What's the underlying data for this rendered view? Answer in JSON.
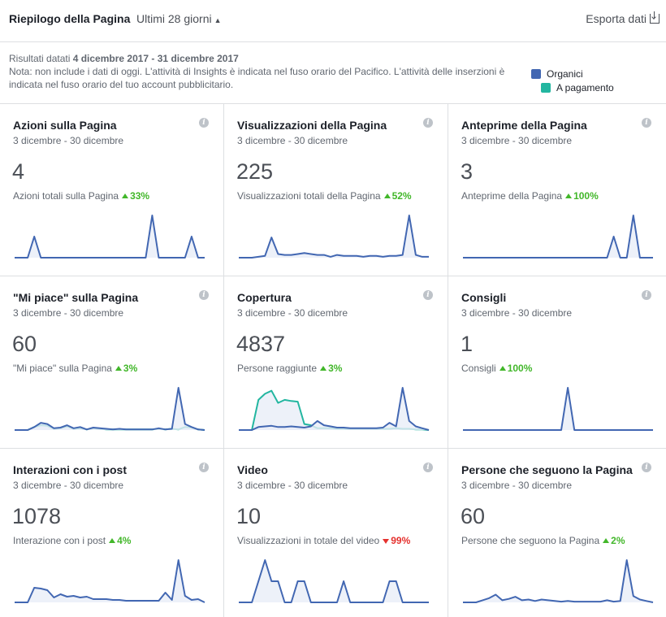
{
  "header": {
    "title": "Riepilogo della Pagina",
    "period": "Ultimi 28 giorni",
    "export_label": "Esporta dati"
  },
  "notes": {
    "prefix": "Risultati datati ",
    "range": "4 dicembre 2017 - 31 dicembre 2017",
    "note": "Nota: non include i dati di oggi. L'attività di Insights è indicata nel fuso orario del Pacifico. L'attività delle inserzioni è indicata nel fuso orario del tuo account pubblicitario."
  },
  "legend": [
    {
      "label": "Organici",
      "color": "#4267b2"
    },
    {
      "label": "A pagamento",
      "color": "#23b6a0"
    }
  ],
  "colors": {
    "organic": "#4267b2",
    "paid": "#23b6a0",
    "fill": "#e9eef7",
    "up": "#42b72a",
    "down": "#e5312e"
  },
  "cards": [
    {
      "title": "Azioni sulla Pagina",
      "subtitle": "3 dicembre - 30 dicembre",
      "value": "4",
      "caption": "Azioni totali sulla Pagina",
      "delta": "33%",
      "direction": "up",
      "organic": [
        0,
        0,
        0,
        2,
        0,
        0,
        0,
        0,
        0,
        0,
        0,
        0,
        0,
        0,
        0,
        0,
        0,
        0,
        0,
        0,
        0,
        4,
        0,
        0,
        0,
        0,
        0,
        2,
        0,
        0
      ],
      "paid": null
    },
    {
      "title": "Visualizzazioni della Pagina",
      "subtitle": "3 dicembre - 30 dicembre",
      "value": "225",
      "caption": "Visualizzazioni totali della Pagina",
      "delta": "52%",
      "direction": "up",
      "organic": [
        0,
        0,
        0,
        0.1,
        0.2,
        2.2,
        0.4,
        0.3,
        0.3,
        0.4,
        0.5,
        0.4,
        0.3,
        0.3,
        0.1,
        0.3,
        0.2,
        0.2,
        0.2,
        0.1,
        0.2,
        0.2,
        0.1,
        0.2,
        0.2,
        0.3,
        4.6,
        0.3,
        0.1,
        0.1
      ],
      "paid": null
    },
    {
      "title": "Anteprime della Pagina",
      "subtitle": "3 dicembre - 30 dicembre",
      "value": "3",
      "caption": "Anteprime della Pagina",
      "delta": "100%",
      "direction": "up",
      "organic": [
        0,
        0,
        0,
        0,
        0,
        0,
        0,
        0,
        0,
        0,
        0,
        0,
        0,
        0,
        0,
        0,
        0,
        0,
        0,
        0,
        0,
        0,
        0,
        1,
        0,
        0,
        2,
        0,
        0,
        0
      ],
      "paid": null
    },
    {
      "title": "\"Mi piace\" sulla Pagina",
      "subtitle": "3 dicembre - 30 dicembre",
      "value": "60",
      "caption": "\"Mi piace\" sulla Pagina",
      "delta": "3%",
      "direction": "up",
      "organic": [
        0,
        0,
        0,
        0.5,
        1.2,
        1.0,
        0.3,
        0.4,
        0.8,
        0.3,
        0.5,
        0.1,
        0.4,
        0.3,
        0.2,
        0.1,
        0.2,
        0.1,
        0.1,
        0.1,
        0.1,
        0.1,
        0.3,
        0.1,
        0.2,
        7.0,
        1.0,
        0.5,
        0.1,
        0
      ],
      "paid": [
        0,
        0,
        0,
        0.5,
        0.8,
        0.7,
        0.2,
        0.3,
        0.6,
        0.2,
        0.3,
        0.1,
        0.3,
        0.2,
        0.1,
        0.1,
        0.1,
        0.1,
        0.1,
        0.1,
        0.1,
        0.1,
        0.2,
        0.1,
        0.2,
        0.1,
        0.5,
        0.4,
        0.1,
        0
      ]
    },
    {
      "title": "Copertura",
      "subtitle": "3 dicembre - 30 dicembre",
      "value": "4837",
      "caption": "Persone raggiunte",
      "delta": "3%",
      "direction": "up",
      "organic": [
        0,
        0,
        0,
        50,
        60,
        70,
        50,
        50,
        60,
        50,
        40,
        60,
        150,
        80,
        60,
        40,
        40,
        30,
        30,
        30,
        30,
        30,
        40,
        120,
        60,
        700,
        150,
        60,
        30,
        0
      ],
      "paid": [
        0,
        0,
        0,
        500,
        600,
        650,
        450,
        500,
        480,
        470,
        100,
        80,
        30,
        30,
        30,
        20,
        20,
        20,
        20,
        20,
        20,
        20,
        20,
        20,
        30,
        20,
        20,
        10,
        10,
        0
      ]
    },
    {
      "title": "Consigli",
      "subtitle": "3 dicembre - 30 dicembre",
      "value": "1",
      "caption": "Consigli",
      "delta": "100%",
      "direction": "up",
      "organic": [
        0,
        0,
        0,
        0,
        0,
        0,
        0,
        0,
        0,
        0,
        0,
        0,
        0,
        0,
        0,
        0,
        1,
        0,
        0,
        0,
        0,
        0,
        0,
        0,
        0,
        0,
        0,
        0,
        0,
        0
      ],
      "paid": null
    },
    {
      "title": "Interazioni con i post",
      "subtitle": "3 dicembre - 30 dicembre",
      "value": "1078",
      "caption": "Interazione con i post",
      "delta": "4%",
      "direction": "up",
      "organic": [
        0,
        0,
        0,
        1.8,
        1.7,
        1.5,
        0.6,
        1.0,
        0.7,
        0.8,
        0.6,
        0.7,
        0.4,
        0.4,
        0.4,
        0.3,
        0.3,
        0.2,
        0.2,
        0.2,
        0.2,
        0.2,
        0.2,
        1.2,
        0.3,
        5.2,
        0.8,
        0.3,
        0.4,
        0
      ],
      "paid": null
    },
    {
      "title": "Video",
      "subtitle": "3 dicembre - 30 dicembre",
      "value": "10",
      "caption": "Visualizzazioni in totale del video",
      "delta": "99%",
      "direction": "down",
      "organic": [
        0,
        0,
        0,
        2,
        4,
        2,
        2,
        0,
        0,
        2,
        2,
        0,
        0,
        0,
        0,
        0,
        2,
        0,
        0,
        0,
        0,
        0,
        0,
        2,
        2,
        0,
        0,
        0,
        0,
        0
      ],
      "paid": null
    },
    {
      "title": "Persone che seguono la Pagina",
      "subtitle": "3 dicembre - 30 dicembre",
      "value": "60",
      "caption": "Persone che seguono la Pagina",
      "delta": "2%",
      "direction": "up",
      "organic": [
        0,
        0,
        0,
        0.3,
        0.6,
        1.1,
        0.3,
        0.5,
        0.8,
        0.3,
        0.4,
        0.2,
        0.4,
        0.3,
        0.2,
        0.1,
        0.2,
        0.1,
        0.1,
        0.1,
        0.1,
        0.1,
        0.3,
        0.1,
        0.2,
        6.0,
        0.9,
        0.4,
        0.2,
        0
      ],
      "paid": null
    }
  ]
}
